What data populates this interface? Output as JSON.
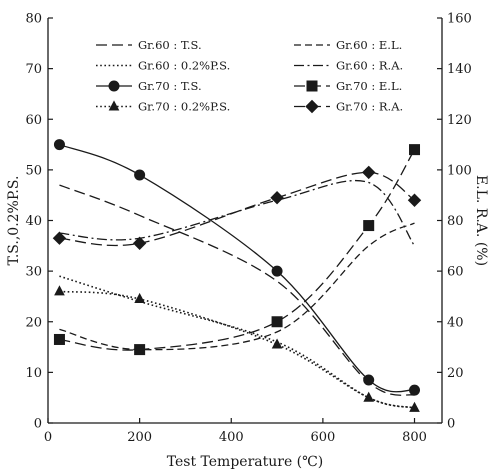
{
  "chart_data": {
    "type": "line",
    "xlabel": "Test Temperature (℃)",
    "ylabel_left": "T.S.,0.2%P.S.",
    "ylabel_right": "E.L. R.A. (%)",
    "x_ticks": [
      0,
      200,
      400,
      600,
      800
    ],
    "y_left_ticks": [
      0,
      10,
      20,
      30,
      40,
      50,
      60,
      70,
      80
    ],
    "y_right_ticks": [
      0,
      20,
      40,
      60,
      80,
      100,
      120,
      140,
      160
    ],
    "xlim": [
      0,
      860
    ],
    "ylim_left": [
      0,
      80
    ],
    "ylim_right": [
      0,
      160
    ],
    "grid": false,
    "legend_position": "top",
    "colors": {
      "ink": "#1a1a1a"
    },
    "series": [
      {
        "name": "Gr.60 : T.S.",
        "axis": "left",
        "style": "longdash",
        "marker": "none",
        "x": [
          25,
          200,
          500,
          700,
          800
        ],
        "y": [
          47,
          41,
          28,
          8,
          5.5
        ]
      },
      {
        "name": "Gr.60 : E.L.",
        "axis": "right",
        "style": "shortdash",
        "marker": "none",
        "x": [
          25,
          200,
          500,
          700,
          800
        ],
        "y": [
          37,
          29,
          36,
          70,
          79
        ]
      },
      {
        "name": "Gr.60 : 0.2%P.S.",
        "axis": "left",
        "style": "dotted",
        "marker": "none",
        "x": [
          25,
          200,
          500,
          700,
          800
        ],
        "y": [
          29,
          24,
          16,
          5,
          3
        ]
      },
      {
        "name": "Gr.60 : R.A.",
        "axis": "right",
        "style": "dashdot",
        "marker": "none",
        "x": [
          25,
          200,
          500,
          700,
          800
        ],
        "y": [
          75,
          73,
          88,
          95,
          70
        ]
      },
      {
        "name": "Gr.70 : T.S.",
        "axis": "left",
        "style": "solid",
        "marker": "circle",
        "x": [
          25,
          200,
          500,
          700,
          800
        ],
        "y": [
          55,
          49,
          30,
          8.5,
          6.5
        ]
      },
      {
        "name": "Gr.70 : E.L.",
        "axis": "right",
        "style": "longdash",
        "marker": "square",
        "x": [
          25,
          200,
          500,
          700,
          800
        ],
        "y": [
          33,
          29,
          40,
          78,
          108
        ]
      },
      {
        "name": "Gr.70 : 0.2%P.S.",
        "axis": "left",
        "style": "dotted",
        "marker": "triangle",
        "x": [
          25,
          200,
          500,
          700,
          800
        ],
        "y": [
          26,
          24.5,
          15.5,
          5,
          3
        ]
      },
      {
        "name": "Gr.70 : R.A.",
        "axis": "right",
        "style": "longdash",
        "marker": "diamond",
        "x": [
          25,
          200,
          500,
          700,
          800
        ],
        "y": [
          73,
          71,
          89,
          99,
          88
        ]
      }
    ]
  }
}
